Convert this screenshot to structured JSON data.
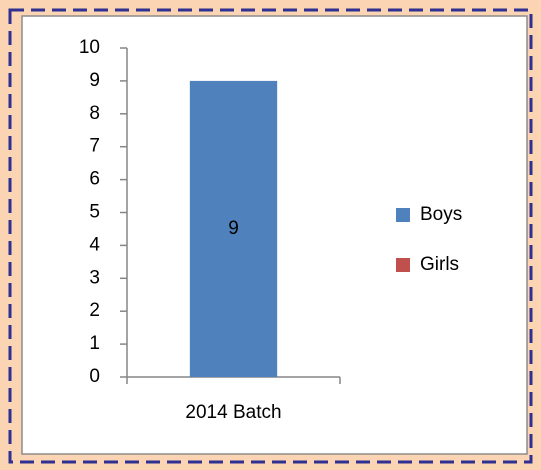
{
  "chart_data": {
    "type": "stacked_bar",
    "categories": [
      "2014 Batch"
    ],
    "series": [
      {
        "name": "Girls",
        "color": "#c0504d",
        "values": [
          0
        ]
      },
      {
        "name": "Boys",
        "color": "#4f81bd",
        "values": [
          9
        ]
      }
    ],
    "ylim": [
      0,
      10
    ],
    "yticks": [
      0,
      1,
      2,
      3,
      4,
      5,
      6,
      7,
      8,
      9,
      10
    ],
    "data_labels": true,
    "legend": "right"
  }
}
